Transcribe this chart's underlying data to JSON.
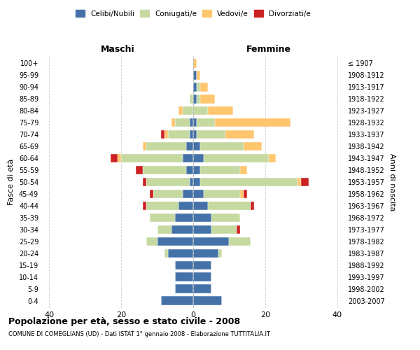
{
  "age_groups": [
    "0-4",
    "5-9",
    "10-14",
    "15-19",
    "20-24",
    "25-29",
    "30-34",
    "35-39",
    "40-44",
    "45-49",
    "50-54",
    "55-59",
    "60-64",
    "65-69",
    "70-74",
    "75-79",
    "80-84",
    "85-89",
    "90-94",
    "95-99",
    "100+"
  ],
  "birth_years": [
    "2003-2007",
    "1998-2002",
    "1993-1997",
    "1988-1992",
    "1983-1987",
    "1978-1982",
    "1973-1977",
    "1968-1972",
    "1963-1967",
    "1958-1962",
    "1953-1957",
    "1948-1952",
    "1943-1947",
    "1938-1942",
    "1933-1937",
    "1928-1932",
    "1923-1927",
    "1918-1922",
    "1913-1917",
    "1908-1912",
    "≤ 1907"
  ],
  "colors": {
    "celibi": "#4472a8",
    "coniugati": "#c5d9a0",
    "vedovi": "#ffc66e",
    "divorziati": "#cc2222"
  },
  "males": {
    "celibi": [
      9,
      5,
      5,
      5,
      7,
      10,
      6,
      5,
      4,
      3,
      1,
      2,
      3,
      2,
      1,
      1,
      0,
      0,
      0,
      0,
      0
    ],
    "coniugati": [
      0,
      0,
      0,
      0,
      1,
      3,
      4,
      7,
      9,
      8,
      12,
      12,
      17,
      11,
      6,
      4,
      3,
      1,
      0,
      0,
      0
    ],
    "vedovi": [
      0,
      0,
      0,
      0,
      0,
      0,
      0,
      0,
      0,
      0,
      0,
      0,
      1,
      1,
      1,
      1,
      1,
      0,
      0,
      0,
      0
    ],
    "divorziati": [
      0,
      0,
      0,
      0,
      0,
      0,
      0,
      0,
      1,
      1,
      1,
      2,
      2,
      0,
      1,
      0,
      0,
      0,
      0,
      0,
      0
    ]
  },
  "females": {
    "celibi": [
      8,
      5,
      5,
      5,
      7,
      10,
      5,
      5,
      4,
      3,
      2,
      2,
      3,
      2,
      1,
      1,
      0,
      1,
      1,
      1,
      0
    ],
    "coniugati": [
      0,
      0,
      0,
      0,
      1,
      6,
      7,
      8,
      12,
      10,
      27,
      11,
      18,
      12,
      8,
      5,
      4,
      1,
      1,
      0,
      0
    ],
    "vedovi": [
      0,
      0,
      0,
      0,
      0,
      0,
      0,
      0,
      0,
      1,
      1,
      2,
      2,
      5,
      8,
      21,
      7,
      4,
      2,
      1,
      1
    ],
    "divorziati": [
      0,
      0,
      0,
      0,
      0,
      0,
      1,
      0,
      1,
      1,
      2,
      0,
      0,
      0,
      0,
      0,
      0,
      0,
      0,
      0,
      0
    ]
  },
  "xlim": 42,
  "title_main": "Popolazione per età, sesso e stato civile - 2008",
  "title_sub": "COMUNE DI COMEGLIANS (UD) - Dati ISTAT 1° gennaio 2008 - Elaborazione TUTTITALIA.IT",
  "ylabel_left": "Fasce di età",
  "ylabel_right": "Anni di nascita",
  "legend_labels": [
    "Celibi/Nubili",
    "Coniugati/e",
    "Vedovi/e",
    "Divorziati/e"
  ],
  "header_maschi": "Maschi",
  "header_femmine": "Femmine"
}
